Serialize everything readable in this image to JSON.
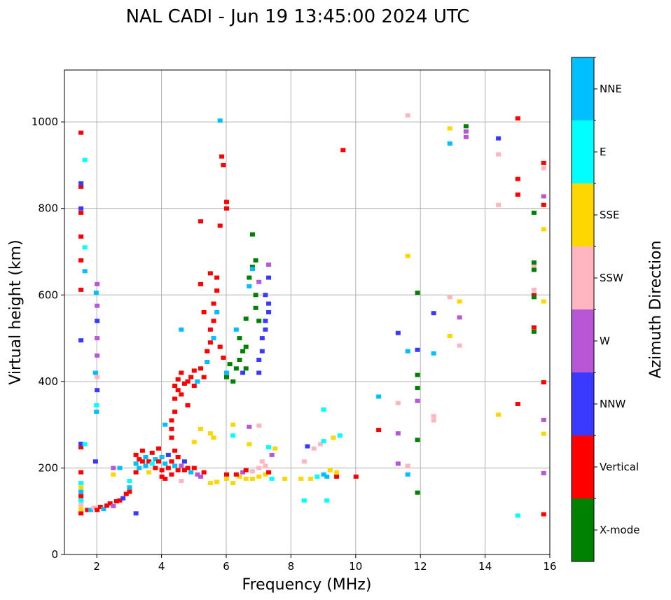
{
  "chart_data": {
    "type": "scatter",
    "title": "NAL CADI - Jun 19 13:45:00 2024 UTC",
    "xlabel": "Frequency (MHz)",
    "ylabel": "Virtual height (km)",
    "xlim": [
      1,
      16
    ],
    "ylim": [
      0,
      1120
    ],
    "xticks": [
      2,
      4,
      6,
      8,
      10,
      12,
      14,
      16
    ],
    "yticks": [
      0,
      200,
      400,
      600,
      800,
      1000
    ],
    "grid": true,
    "colorbar": {
      "label": "Azimuth Direction",
      "categories": [
        {
          "name": "X-mode",
          "color": "#008000"
        },
        {
          "name": "Vertical",
          "color": "#ff0000"
        },
        {
          "name": "NNW",
          "color": "#3a3aff"
        },
        {
          "name": "W",
          "color": "#b857d6"
        },
        {
          "name": "SSW",
          "color": "#ffb6c1"
        },
        {
          "name": "SSE",
          "color": "#ffd700"
        },
        {
          "name": "E",
          "color": "#00ffff"
        },
        {
          "name": "NNE",
          "color": "#00bfff"
        }
      ]
    },
    "point_fields": [
      "frequency_mhz",
      "virtual_height_km",
      "category_index"
    ],
    "points": [
      [
        1.5,
        95,
        1
      ],
      [
        1.5,
        105,
        5
      ],
      [
        1.5,
        115,
        4
      ],
      [
        1.5,
        125,
        6
      ],
      [
        1.5,
        135,
        1
      ],
      [
        1.5,
        145,
        7
      ],
      [
        1.5,
        155,
        5
      ],
      [
        1.5,
        165,
        6
      ],
      [
        1.5,
        190,
        1
      ],
      [
        1.5,
        248,
        1
      ],
      [
        1.5,
        256,
        2
      ],
      [
        1.5,
        495,
        2
      ],
      [
        1.5,
        612,
        1
      ],
      [
        1.5,
        680,
        1
      ],
      [
        1.5,
        735,
        1
      ],
      [
        1.5,
        790,
        1
      ],
      [
        1.5,
        800,
        2
      ],
      [
        1.5,
        850,
        1
      ],
      [
        1.5,
        858,
        2
      ],
      [
        1.5,
        975,
        1
      ],
      [
        1.62,
        912,
        6
      ],
      [
        1.62,
        710,
        6
      ],
      [
        1.62,
        655,
        7
      ],
      [
        1.62,
        255,
        6
      ],
      [
        1.7,
        103,
        1
      ],
      [
        1.8,
        103,
        7
      ],
      [
        1.9,
        108,
        4
      ],
      [
        2.0,
        103,
        1
      ],
      [
        2.1,
        110,
        1
      ],
      [
        2.2,
        105,
        7
      ],
      [
        2.3,
        113,
        1
      ],
      [
        2.4,
        118,
        1
      ],
      [
        2.5,
        112,
        3
      ],
      [
        2.6,
        123,
        1
      ],
      [
        2.7,
        125,
        1
      ],
      [
        2.8,
        130,
        2
      ],
      [
        2.9,
        140,
        1
      ],
      [
        3.0,
        155,
        7
      ],
      [
        3.0,
        170,
        6
      ],
      [
        3.0,
        145,
        1
      ],
      [
        2.5,
        200,
        3
      ],
      [
        2.5,
        185,
        5
      ],
      [
        2.7,
        200,
        7
      ],
      [
        3.2,
        95,
        2
      ],
      [
        1.98,
        330,
        7
      ],
      [
        2.0,
        380,
        2
      ],
      [
        2.0,
        460,
        3
      ],
      [
        2.0,
        500,
        3
      ],
      [
        2.0,
        540,
        2
      ],
      [
        2.0,
        575,
        3
      ],
      [
        1.97,
        605,
        7
      ],
      [
        2.0,
        625,
        3
      ],
      [
        2.0,
        410,
        4
      ],
      [
        1.95,
        215,
        2
      ],
      [
        1.98,
        345,
        6
      ],
      [
        1.95,
        420,
        7
      ],
      [
        3.2,
        190,
        1
      ],
      [
        3.2,
        210,
        7
      ],
      [
        3.2,
        230,
        1
      ],
      [
        3.3,
        220,
        1
      ],
      [
        3.3,
        200,
        7
      ],
      [
        3.4,
        240,
        1
      ],
      [
        3.4,
        215,
        1
      ],
      [
        3.5,
        205,
        7
      ],
      [
        3.5,
        225,
        7
      ],
      [
        3.6,
        215,
        1
      ],
      [
        3.6,
        190,
        5
      ],
      [
        3.7,
        210,
        6
      ],
      [
        3.7,
        235,
        1
      ],
      [
        3.8,
        200,
        1
      ],
      [
        3.8,
        220,
        7
      ],
      [
        3.9,
        215,
        1
      ],
      [
        3.9,
        245,
        1
      ],
      [
        4.0,
        195,
        1
      ],
      [
        4.0,
        180,
        1
      ],
      [
        4.0,
        225,
        7
      ],
      [
        4.1,
        210,
        7
      ],
      [
        4.1,
        175,
        1
      ],
      [
        4.2,
        200,
        1
      ],
      [
        4.2,
        230,
        2
      ],
      [
        4.3,
        185,
        1
      ],
      [
        4.3,
        215,
        1
      ],
      [
        4.4,
        205,
        7
      ],
      [
        4.4,
        240,
        1
      ],
      [
        4.5,
        195,
        1
      ],
      [
        4.5,
        225,
        1
      ],
      [
        4.6,
        205,
        3
      ],
      [
        4.6,
        170,
        4
      ],
      [
        4.7,
        195,
        1
      ],
      [
        4.7,
        215,
        2
      ],
      [
        4.8,
        200,
        1
      ],
      [
        4.9,
        190,
        7
      ],
      [
        5.0,
        200,
        1
      ],
      [
        5.1,
        185,
        3
      ],
      [
        5.2,
        180,
        3
      ],
      [
        5.3,
        190,
        1
      ],
      [
        4.3,
        290,
        1
      ],
      [
        4.3,
        310,
        1
      ],
      [
        4.4,
        330,
        1
      ],
      [
        4.4,
        360,
        1
      ],
      [
        4.4,
        390,
        1
      ],
      [
        4.5,
        405,
        1
      ],
      [
        4.5,
        380,
        1
      ],
      [
        4.6,
        370,
        1
      ],
      [
        4.6,
        420,
        1
      ],
      [
        4.7,
        395,
        1
      ],
      [
        4.8,
        345,
        1
      ],
      [
        4.8,
        400,
        1
      ],
      [
        4.9,
        410,
        1
      ],
      [
        5.0,
        390,
        1
      ],
      [
        5.0,
        425,
        1
      ],
      [
        5.1,
        400,
        7
      ],
      [
        5.2,
        430,
        1
      ],
      [
        5.3,
        410,
        1
      ],
      [
        5.4,
        445,
        7
      ],
      [
        5.4,
        470,
        1
      ],
      [
        5.5,
        490,
        1
      ],
      [
        5.5,
        520,
        1
      ],
      [
        5.6,
        540,
        1
      ],
      [
        5.6,
        580,
        1
      ],
      [
        5.7,
        610,
        1
      ],
      [
        5.7,
        640,
        1
      ],
      [
        5.5,
        650,
        1
      ],
      [
        5.2,
        625,
        1
      ],
      [
        5.6,
        500,
        7
      ],
      [
        5.8,
        480,
        1
      ],
      [
        5.9,
        455,
        1
      ],
      [
        6.0,
        420,
        7
      ],
      [
        5.7,
        560,
        7
      ],
      [
        5.3,
        560,
        1
      ],
      [
        5.2,
        770,
        1
      ],
      [
        5.8,
        760,
        1
      ],
      [
        5.9,
        900,
        1
      ],
      [
        5.85,
        920,
        1
      ],
      [
        6.0,
        815,
        1
      ],
      [
        6.0,
        800,
        1
      ],
      [
        5.8,
        1003,
        7
      ],
      [
        4.6,
        520,
        7
      ],
      [
        4.1,
        300,
        7
      ],
      [
        4.3,
        270,
        1
      ],
      [
        6.0,
        410,
        0
      ],
      [
        6.1,
        440,
        0
      ],
      [
        6.2,
        400,
        0
      ],
      [
        6.3,
        430,
        0
      ],
      [
        6.3,
        520,
        7
      ],
      [
        6.4,
        500,
        0
      ],
      [
        6.5,
        470,
        0
      ],
      [
        6.6,
        545,
        0
      ],
      [
        6.6,
        480,
        0
      ],
      [
        6.7,
        640,
        0
      ],
      [
        6.7,
        620,
        7
      ],
      [
        6.8,
        665,
        0
      ],
      [
        6.8,
        660,
        7
      ],
      [
        6.9,
        600,
        0
      ],
      [
        6.9,
        570,
        0
      ],
      [
        7.0,
        540,
        0
      ],
      [
        6.9,
        680,
        0
      ],
      [
        6.8,
        740,
        0
      ],
      [
        6.4,
        450,
        0
      ],
      [
        6.5,
        420,
        2
      ],
      [
        6.6,
        430,
        0
      ],
      [
        7.0,
        420,
        2
      ],
      [
        7.0,
        450,
        2
      ],
      [
        7.1,
        470,
        2
      ],
      [
        7.1,
        500,
        2
      ],
      [
        7.2,
        520,
        2
      ],
      [
        7.2,
        540,
        2
      ],
      [
        7.3,
        560,
        2
      ],
      [
        7.3,
        580,
        2
      ],
      [
        7.2,
        600,
        2
      ],
      [
        7.3,
        640,
        2
      ],
      [
        7.3,
        670,
        3
      ],
      [
        7.0,
        630,
        3
      ],
      [
        5.0,
        260,
        5
      ],
      [
        5.2,
        290,
        5
      ],
      [
        5.5,
        280,
        5
      ],
      [
        5.6,
        270,
        5
      ],
      [
        6.2,
        300,
        5
      ],
      [
        6.2,
        275,
        6
      ],
      [
        6.7,
        295,
        3
      ],
      [
        6.7,
        255,
        5
      ],
      [
        7.0,
        298,
        4
      ],
      [
        7.3,
        248,
        6
      ],
      [
        7.5,
        245,
        5
      ],
      [
        7.4,
        230,
        3
      ],
      [
        5.5,
        165,
        5
      ],
      [
        5.7,
        168,
        5
      ],
      [
        6.0,
        175,
        5
      ],
      [
        6.2,
        165,
        5
      ],
      [
        6.4,
        180,
        5
      ],
      [
        6.6,
        175,
        5
      ],
      [
        6.8,
        175,
        5
      ],
      [
        7.0,
        180,
        5
      ],
      [
        7.2,
        185,
        5
      ],
      [
        6.5,
        190,
        3
      ],
      [
        6.8,
        192,
        4
      ],
      [
        7.0,
        200,
        4
      ],
      [
        7.2,
        205,
        4
      ],
      [
        7.4,
        175,
        6
      ],
      [
        7.8,
        175,
        5
      ],
      [
        6.0,
        185,
        1
      ],
      [
        6.3,
        185,
        1
      ],
      [
        6.6,
        195,
        1
      ],
      [
        7.3,
        190,
        1
      ],
      [
        7.1,
        215,
        4
      ],
      [
        8.4,
        125,
        6
      ],
      [
        9.1,
        125,
        6
      ],
      [
        8.3,
        175,
        5
      ],
      [
        8.6,
        175,
        5
      ],
      [
        8.8,
        180,
        6
      ],
      [
        9.0,
        185,
        7
      ],
      [
        9.1,
        180,
        7
      ],
      [
        8.4,
        215,
        4
      ],
      [
        8.5,
        250,
        2
      ],
      [
        8.7,
        245,
        4
      ],
      [
        8.9,
        255,
        4
      ],
      [
        9.0,
        262,
        6
      ],
      [
        9.0,
        335,
        6
      ],
      [
        9.3,
        270,
        5
      ],
      [
        9.5,
        275,
        6
      ],
      [
        9.2,
        195,
        5
      ],
      [
        9.4,
        180,
        1
      ],
      [
        9.4,
        190,
        5
      ],
      [
        10.0,
        180,
        1
      ],
      [
        9.6,
        935,
        1
      ],
      [
        10.7,
        365,
        7
      ],
      [
        10.7,
        288,
        1
      ],
      [
        11.3,
        512,
        2
      ],
      [
        11.3,
        350,
        4
      ],
      [
        11.3,
        280,
        3
      ],
      [
        11.3,
        210,
        3
      ],
      [
        11.6,
        205,
        4
      ],
      [
        11.6,
        185,
        7
      ],
      [
        11.6,
        470,
        7
      ],
      [
        11.6,
        690,
        5
      ],
      [
        11.6,
        1015,
        4
      ],
      [
        11.9,
        605,
        0
      ],
      [
        11.9,
        473,
        2
      ],
      [
        11.9,
        415,
        0
      ],
      [
        11.9,
        385,
        0
      ],
      [
        11.9,
        355,
        3
      ],
      [
        11.9,
        265,
        0
      ],
      [
        11.9,
        143,
        0
      ],
      [
        12.4,
        558,
        2
      ],
      [
        12.4,
        465,
        7
      ],
      [
        12.4,
        320,
        4
      ],
      [
        12.4,
        310,
        4
      ],
      [
        12.9,
        985,
        5
      ],
      [
        12.9,
        950,
        7
      ],
      [
        12.9,
        595,
        4
      ],
      [
        12.9,
        505,
        5
      ],
      [
        13.2,
        585,
        5
      ],
      [
        13.2,
        548,
        3
      ],
      [
        13.2,
        483,
        4
      ],
      [
        13.4,
        990,
        0
      ],
      [
        13.4,
        978,
        3
      ],
      [
        13.4,
        965,
        3
      ],
      [
        14.4,
        962,
        2
      ],
      [
        14.4,
        925,
        4
      ],
      [
        14.4,
        808,
        4
      ],
      [
        14.4,
        323,
        5
      ],
      [
        15.0,
        1008,
        1
      ],
      [
        15.0,
        868,
        1
      ],
      [
        15.0,
        832,
        1
      ],
      [
        15.0,
        348,
        1
      ],
      [
        15.0,
        90,
        6
      ],
      [
        15.5,
        790,
        0
      ],
      [
        15.5,
        675,
        0
      ],
      [
        15.5,
        665,
        4
      ],
      [
        15.5,
        658,
        0
      ],
      [
        15.5,
        612,
        4
      ],
      [
        15.5,
        600,
        1
      ],
      [
        15.5,
        595,
        0
      ],
      [
        15.5,
        525,
        1
      ],
      [
        15.5,
        515,
        0
      ],
      [
        15.8,
        905,
        1
      ],
      [
        15.8,
        893,
        4
      ],
      [
        15.8,
        828,
        3
      ],
      [
        15.8,
        808,
        1
      ],
      [
        15.8,
        752,
        5
      ],
      [
        15.8,
        585,
        5
      ],
      [
        15.8,
        398,
        1
      ],
      [
        15.8,
        311,
        3
      ],
      [
        15.8,
        279,
        5
      ],
      [
        15.8,
        188,
        3
      ],
      [
        15.8,
        93,
        1
      ]
    ]
  }
}
